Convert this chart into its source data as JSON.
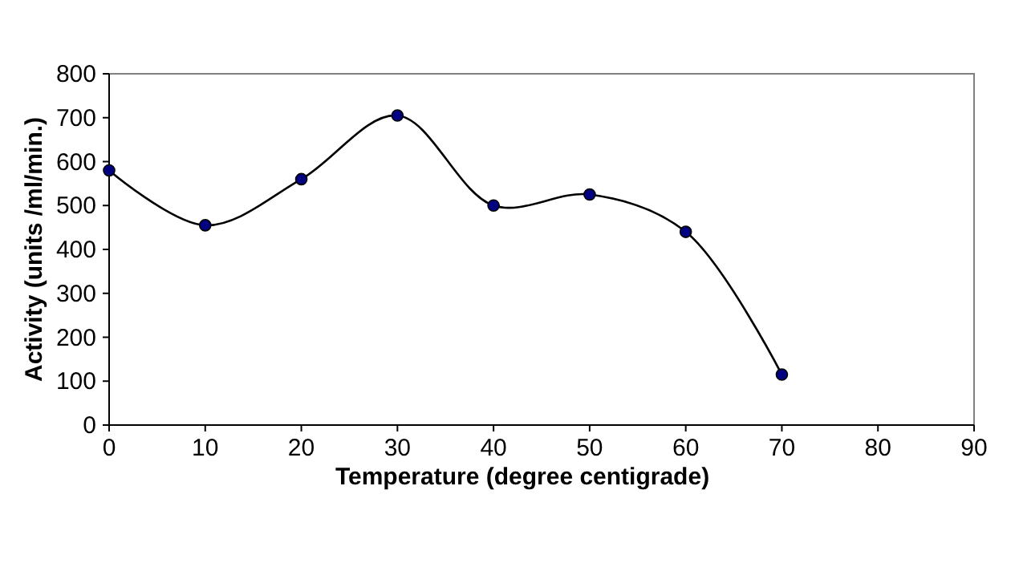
{
  "chart_data": {
    "type": "line",
    "xlabel": "Temperature (degree centigrade)",
    "ylabel": "Activity (units /ml/min.)",
    "x": [
      0,
      10,
      20,
      30,
      40,
      50,
      60,
      70
    ],
    "series": [
      {
        "color": "#000000",
        "values": [
          580,
          455,
          560,
          705,
          500,
          525,
          440,
          115
        ]
      }
    ],
    "xlim": [
      0,
      90
    ],
    "xticks": [
      0,
      10,
      20,
      30,
      40,
      50,
      60,
      70,
      80,
      90
    ],
    "ylim": [
      0,
      800
    ],
    "yticks": [
      0,
      100,
      200,
      300,
      400,
      500,
      600,
      700,
      800
    ],
    "grid": false,
    "marker": "circle",
    "line_style": "solid"
  }
}
